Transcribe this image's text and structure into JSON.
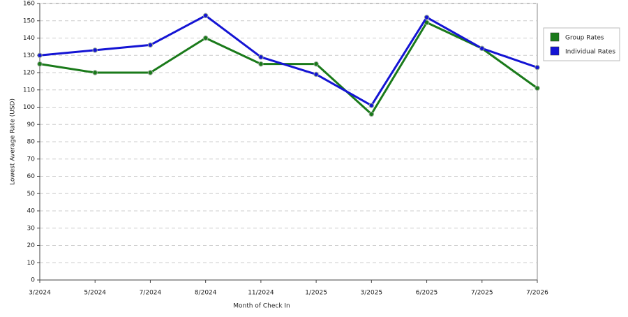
{
  "chart_data": {
    "type": "line",
    "x_label": "Month of Check In",
    "y_label": "Lowest Average Rate (USD)",
    "categories": [
      "3/2024",
      "5/2024",
      "7/2024",
      "8/2024",
      "11/2024",
      "1/2025",
      "3/2025",
      "6/2025",
      "7/2025",
      "7/2026"
    ],
    "series": [
      {
        "name": "Group Rates",
        "color": "#1a7a1a",
        "values": [
          125,
          120,
          120,
          140,
          125,
          125,
          96,
          149,
          134,
          111
        ]
      },
      {
        "name": "Individual Rates",
        "color": "#1414d4",
        "values": [
          130,
          133,
          136,
          153,
          129,
          119,
          101,
          152,
          134,
          123
        ]
      }
    ],
    "ylim": [
      0,
      160
    ],
    "yticks": [
      0,
      10,
      20,
      30,
      40,
      50,
      60,
      70,
      80,
      90,
      100,
      110,
      120,
      130,
      140,
      150,
      160
    ],
    "grid": true,
    "legend": "right"
  }
}
